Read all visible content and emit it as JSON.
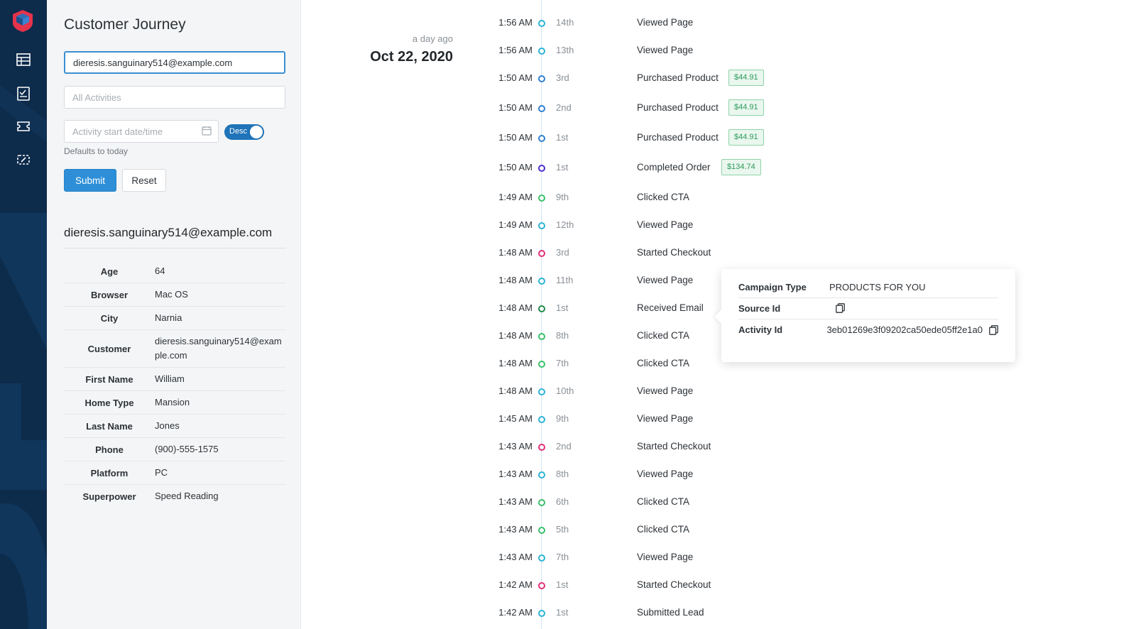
{
  "panel": {
    "title": "Customer Journey",
    "email_value": "dieresis.sanguinary514@example.com",
    "activities_placeholder": "All Activities",
    "date_placeholder": "Activity start date/time",
    "sort_toggle_label": "Desc",
    "date_hint": "Defaults to today",
    "submit_label": "Submit",
    "reset_label": "Reset"
  },
  "profile": {
    "email": "dieresis.sanguinary514@example.com",
    "attributes": [
      {
        "key": "Age",
        "value": "64"
      },
      {
        "key": "Browser",
        "value": "Mac OS"
      },
      {
        "key": "City",
        "value": "Narnia"
      },
      {
        "key": "Customer",
        "value": "dieresis.sanguinary514@example.com"
      },
      {
        "key": "First Name",
        "value": "William"
      },
      {
        "key": "Home Type",
        "value": "Mansion"
      },
      {
        "key": "Last Name",
        "value": "Jones"
      },
      {
        "key": "Phone",
        "value": "(900)-555-1575"
      },
      {
        "key": "Platform",
        "value": "PC"
      },
      {
        "key": "Superpower",
        "value": "Speed Reading"
      }
    ]
  },
  "timeline": {
    "relative_date": "a day ago",
    "date": "Oct 22, 2020",
    "events": [
      {
        "time": "1:56 AM",
        "ordinal": "14th",
        "name": "Viewed Page",
        "color": "#2bb3d4"
      },
      {
        "time": "1:56 AM",
        "ordinal": "13th",
        "name": "Viewed Page",
        "color": "#2bb3d4"
      },
      {
        "time": "1:50 AM",
        "ordinal": "3rd",
        "name": "Purchased Product",
        "color": "#2f7fd0",
        "price": "$44.91"
      },
      {
        "time": "1:50 AM",
        "ordinal": "2nd",
        "name": "Purchased Product",
        "color": "#2f7fd0",
        "price": "$44.91"
      },
      {
        "time": "1:50 AM",
        "ordinal": "1st",
        "name": "Purchased Product",
        "color": "#2f7fd0",
        "price": "$44.91"
      },
      {
        "time": "1:50 AM",
        "ordinal": "1st",
        "name": "Completed Order",
        "color": "#4b2fd0",
        "price": "$134.74"
      },
      {
        "time": "1:49 AM",
        "ordinal": "9th",
        "name": "Clicked CTA",
        "color": "#3bbf6b"
      },
      {
        "time": "1:49 AM",
        "ordinal": "12th",
        "name": "Viewed Page",
        "color": "#2bb3d4"
      },
      {
        "time": "1:48 AM",
        "ordinal": "3rd",
        "name": "Started Checkout",
        "color": "#e0307a"
      },
      {
        "time": "1:48 AM",
        "ordinal": "11th",
        "name": "Viewed Page",
        "color": "#2bb3d4"
      },
      {
        "time": "1:48 AM",
        "ordinal": "1st",
        "name": "Received Email",
        "color": "#1e8a4a"
      },
      {
        "time": "1:48 AM",
        "ordinal": "8th",
        "name": "Clicked CTA",
        "color": "#3bbf6b"
      },
      {
        "time": "1:48 AM",
        "ordinal": "7th",
        "name": "Clicked CTA",
        "color": "#3bbf6b"
      },
      {
        "time": "1:48 AM",
        "ordinal": "10th",
        "name": "Viewed Page",
        "color": "#2bb3d4"
      },
      {
        "time": "1:45 AM",
        "ordinal": "9th",
        "name": "Viewed Page",
        "color": "#2bb3d4"
      },
      {
        "time": "1:43 AM",
        "ordinal": "2nd",
        "name": "Started Checkout",
        "color": "#e0307a"
      },
      {
        "time": "1:43 AM",
        "ordinal": "8th",
        "name": "Viewed Page",
        "color": "#2bb3d4"
      },
      {
        "time": "1:43 AM",
        "ordinal": "6th",
        "name": "Clicked CTA",
        "color": "#3bbf6b"
      },
      {
        "time": "1:43 AM",
        "ordinal": "5th",
        "name": "Clicked CTA",
        "color": "#3bbf6b"
      },
      {
        "time": "1:43 AM",
        "ordinal": "7th",
        "name": "Viewed Page",
        "color": "#2bb3d4"
      },
      {
        "time": "1:42 AM",
        "ordinal": "1st",
        "name": "Started Checkout",
        "color": "#e0307a"
      },
      {
        "time": "1:42 AM",
        "ordinal": "1st",
        "name": "Submitted Lead",
        "color": "#2bb3d4"
      }
    ]
  },
  "popover": {
    "rows": [
      {
        "key": "Campaign Type",
        "value": "PRODUCTS FOR YOU",
        "copy": false
      },
      {
        "key": "Source Id",
        "value": "",
        "copy": true
      },
      {
        "key": "Activity Id",
        "value": "3eb01269e3f09202ca50ede05ff2e1a0",
        "copy": true
      }
    ]
  },
  "icons": {
    "logo": "shield-logo-icon",
    "nav": [
      "table-icon",
      "report-icon",
      "ticket-icon",
      "tag-icon"
    ],
    "calendar": "calendar-icon",
    "copy": "copy-icon"
  },
  "colors": {
    "rail": "#0d2b4b",
    "accent": "#2e8fd8",
    "logo": "#e5334b"
  }
}
